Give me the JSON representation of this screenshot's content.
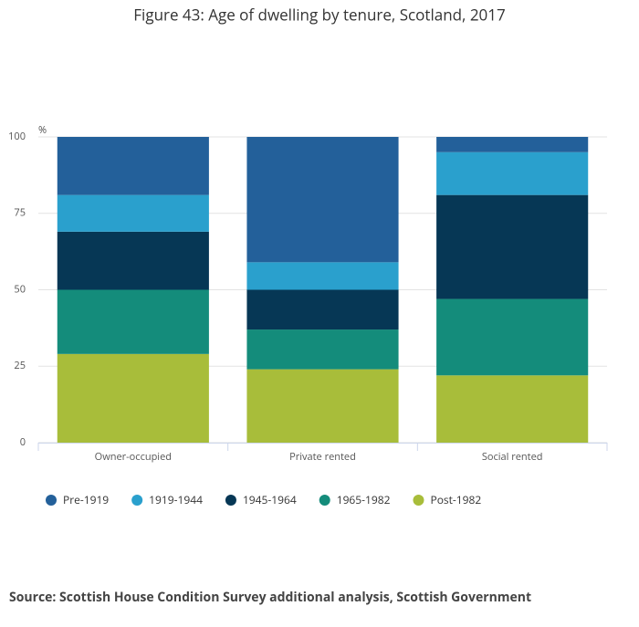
{
  "chart_data": {
    "type": "stacked-bar",
    "title": "Figure 43: Age of dwelling by tenure, Scotland, 2017",
    "y_label": "%",
    "categories": [
      "Owner-occupied",
      "Private rented",
      "Social rented"
    ],
    "series": [
      {
        "name": "Pre-1919",
        "color": "#23609a",
        "values": [
          19,
          41,
          5
        ]
      },
      {
        "name": "1919-1944",
        "color": "#2aa0cd",
        "values": [
          12,
          9,
          14
        ]
      },
      {
        "name": "1945-1964",
        "color": "#063755",
        "values": [
          19,
          13,
          34
        ]
      },
      {
        "name": "1965-1982",
        "color": "#148c7b",
        "values": [
          21,
          13,
          25
        ]
      },
      {
        "name": "Post-1982",
        "color": "#a8bd3a",
        "values": [
          29,
          24,
          22
        ]
      }
    ],
    "ylim": [
      0,
      100
    ],
    "yticks": [
      0,
      25,
      50,
      75,
      100
    ],
    "grid": true,
    "source": "Source: Scottish House Condition Survey additional analysis, Scottish Government"
  }
}
